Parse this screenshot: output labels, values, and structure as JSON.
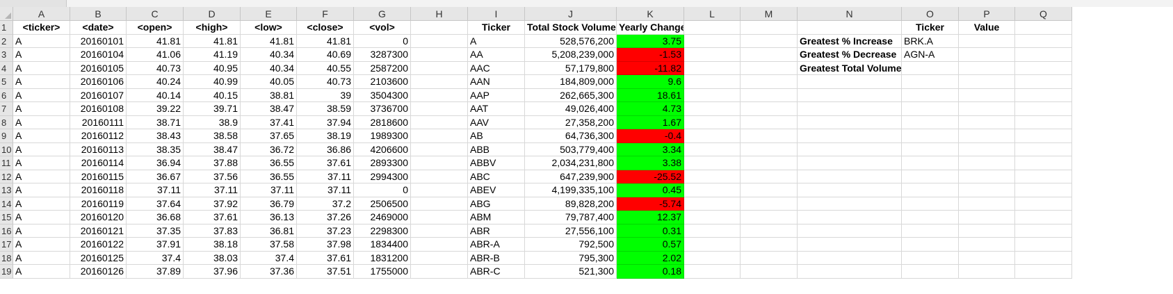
{
  "columns": [
    "A",
    "B",
    "C",
    "D",
    "E",
    "F",
    "G",
    "H",
    "I",
    "J",
    "K",
    "L",
    "M",
    "N",
    "O",
    "P",
    "Q"
  ],
  "headers": {
    "A": "<ticker>",
    "B": "<date>",
    "C": "<open>",
    "D": "<high>",
    "E": "<low>",
    "F": "<close>",
    "G": "<vol>",
    "I": "Ticker",
    "J": "Total Stock Volume",
    "K": "Yearly Change",
    "O": "Ticker",
    "P": "Value"
  },
  "summary_labels": [
    "Greatest % Increase",
    "Greatest % Decrease",
    "Greatest Total Volume"
  ],
  "summary_tickers": [
    "BRK.A",
    "AGN-A",
    ""
  ],
  "colors": {
    "positive": "#00ff00",
    "negative": "#ff0000",
    "header_bg": "#e6e6e6"
  },
  "rows": [
    {
      "n": "2",
      "a": "A",
      "b": "20160101",
      "c": "41.81",
      "d": "41.81",
      "e": "41.81",
      "f": "41.81",
      "g": "0",
      "i": "A",
      "j": "528,576,200",
      "k": "3.75",
      "sign": "pos"
    },
    {
      "n": "3",
      "a": "A",
      "b": "20160104",
      "c": "41.06",
      "d": "41.19",
      "e": "40.34",
      "f": "40.69",
      "g": "3287300",
      "i": "AA",
      "j": "5,208,239,000",
      "k": "-1.53",
      "sign": "neg"
    },
    {
      "n": "4",
      "a": "A",
      "b": "20160105",
      "c": "40.73",
      "d": "40.95",
      "e": "40.34",
      "f": "40.55",
      "g": "2587200",
      "i": "AAC",
      "j": "57,179,800",
      "k": "-11.82",
      "sign": "neg"
    },
    {
      "n": "5",
      "a": "A",
      "b": "20160106",
      "c": "40.24",
      "d": "40.99",
      "e": "40.05",
      "f": "40.73",
      "g": "2103600",
      "i": "AAN",
      "j": "184,809,000",
      "k": "9.6",
      "sign": "pos"
    },
    {
      "n": "6",
      "a": "A",
      "b": "20160107",
      "c": "40.14",
      "d": "40.15",
      "e": "38.81",
      "f": "39",
      "g": "3504300",
      "i": "AAP",
      "j": "262,665,300",
      "k": "18.61",
      "sign": "pos"
    },
    {
      "n": "7",
      "a": "A",
      "b": "20160108",
      "c": "39.22",
      "d": "39.71",
      "e": "38.47",
      "f": "38.59",
      "g": "3736700",
      "i": "AAT",
      "j": "49,026,400",
      "k": "4.73",
      "sign": "pos"
    },
    {
      "n": "8",
      "a": "A",
      "b": "20160111",
      "c": "38.71",
      "d": "38.9",
      "e": "37.41",
      "f": "37.94",
      "g": "2818600",
      "i": "AAV",
      "j": "27,358,200",
      "k": "1.67",
      "sign": "pos"
    },
    {
      "n": "9",
      "a": "A",
      "b": "20160112",
      "c": "38.43",
      "d": "38.58",
      "e": "37.65",
      "f": "38.19",
      "g": "1989300",
      "i": "AB",
      "j": "64,736,300",
      "k": "-0.4",
      "sign": "neg"
    },
    {
      "n": "10",
      "a": "A",
      "b": "20160113",
      "c": "38.35",
      "d": "38.47",
      "e": "36.72",
      "f": "36.86",
      "g": "4206600",
      "i": "ABB",
      "j": "503,779,400",
      "k": "3.34",
      "sign": "pos"
    },
    {
      "n": "11",
      "a": "A",
      "b": "20160114",
      "c": "36.94",
      "d": "37.88",
      "e": "36.55",
      "f": "37.61",
      "g": "2893300",
      "i": "ABBV",
      "j": "2,034,231,800",
      "k": "3.38",
      "sign": "pos"
    },
    {
      "n": "12",
      "a": "A",
      "b": "20160115",
      "c": "36.67",
      "d": "37.56",
      "e": "36.55",
      "f": "37.11",
      "g": "2994300",
      "i": "ABC",
      "j": "647,239,900",
      "k": "-25.52",
      "sign": "neg"
    },
    {
      "n": "13",
      "a": "A",
      "b": "20160118",
      "c": "37.11",
      "d": "37.11",
      "e": "37.11",
      "f": "37.11",
      "g": "0",
      "i": "ABEV",
      "j": "4,199,335,100",
      "k": "0.45",
      "sign": "pos"
    },
    {
      "n": "14",
      "a": "A",
      "b": "20160119",
      "c": "37.64",
      "d": "37.92",
      "e": "36.79",
      "f": "37.2",
      "g": "2506500",
      "i": "ABG",
      "j": "89,828,200",
      "k": "-5.74",
      "sign": "neg"
    },
    {
      "n": "15",
      "a": "A",
      "b": "20160120",
      "c": "36.68",
      "d": "37.61",
      "e": "36.13",
      "f": "37.26",
      "g": "2469000",
      "i": "ABM",
      "j": "79,787,400",
      "k": "12.37",
      "sign": "pos"
    },
    {
      "n": "16",
      "a": "A",
      "b": "20160121",
      "c": "37.35",
      "d": "37.83",
      "e": "36.81",
      "f": "37.23",
      "g": "2298300",
      "i": "ABR",
      "j": "27,556,100",
      "k": "0.31",
      "sign": "pos"
    },
    {
      "n": "17",
      "a": "A",
      "b": "20160122",
      "c": "37.91",
      "d": "38.18",
      "e": "37.58",
      "f": "37.98",
      "g": "1834400",
      "i": "ABR-A",
      "j": "792,500",
      "k": "0.57",
      "sign": "pos"
    },
    {
      "n": "18",
      "a": "A",
      "b": "20160125",
      "c": "37.4",
      "d": "38.03",
      "e": "37.4",
      "f": "37.61",
      "g": "1831200",
      "i": "ABR-B",
      "j": "795,300",
      "k": "2.02",
      "sign": "pos"
    },
    {
      "n": "19",
      "a": "A",
      "b": "20160126",
      "c": "37.89",
      "d": "37.96",
      "e": "37.36",
      "f": "37.51",
      "g": "1755000",
      "i": "ABR-C",
      "j": "521,300",
      "k": "0.18",
      "sign": "pos"
    }
  ]
}
